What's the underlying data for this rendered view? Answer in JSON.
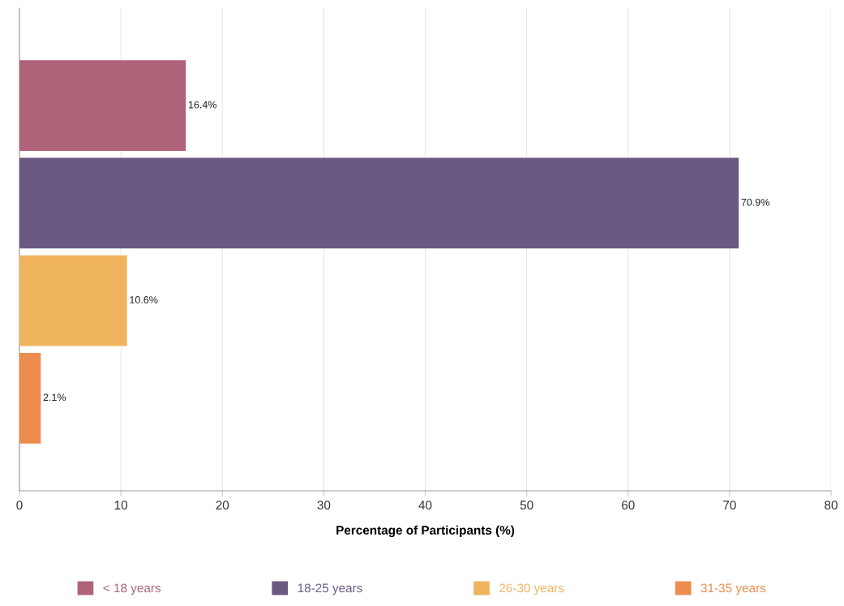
{
  "chart_data": {
    "type": "bar",
    "orientation": "horizontal",
    "xlabel": "Percentage of Participants (%)",
    "categories": [
      null,
      null,
      null,
      null
    ],
    "series": [
      {
        "name": "< 18 years",
        "color": "#ae6379",
        "values": [
          16.4,
          null,
          null,
          null
        ],
        "value_labels": [
          "16.4%",
          null,
          null,
          null
        ]
      },
      {
        "name": "18-25 years",
        "color": "#6a5a81",
        "values": [
          null,
          70.9,
          null,
          null
        ],
        "value_labels": [
          null,
          "70.9%",
          null,
          null
        ]
      },
      {
        "name": "26-30 years",
        "color": "#f1b45e",
        "values": [
          null,
          null,
          10.6,
          null
        ],
        "value_labels": [
          null,
          null,
          "10.6%",
          null
        ]
      },
      {
        "name": "31-35 years",
        "color": "#ec8c4f",
        "values": [
          null,
          null,
          null,
          2.1
        ],
        "value_labels": [
          null,
          null,
          null,
          "2.1%"
        ]
      }
    ],
    "xlim": [
      0,
      80
    ],
    "xticks": [
      0,
      10,
      20,
      30,
      40,
      50,
      60,
      70,
      80
    ],
    "grid": "x",
    "legend": "bottom"
  }
}
